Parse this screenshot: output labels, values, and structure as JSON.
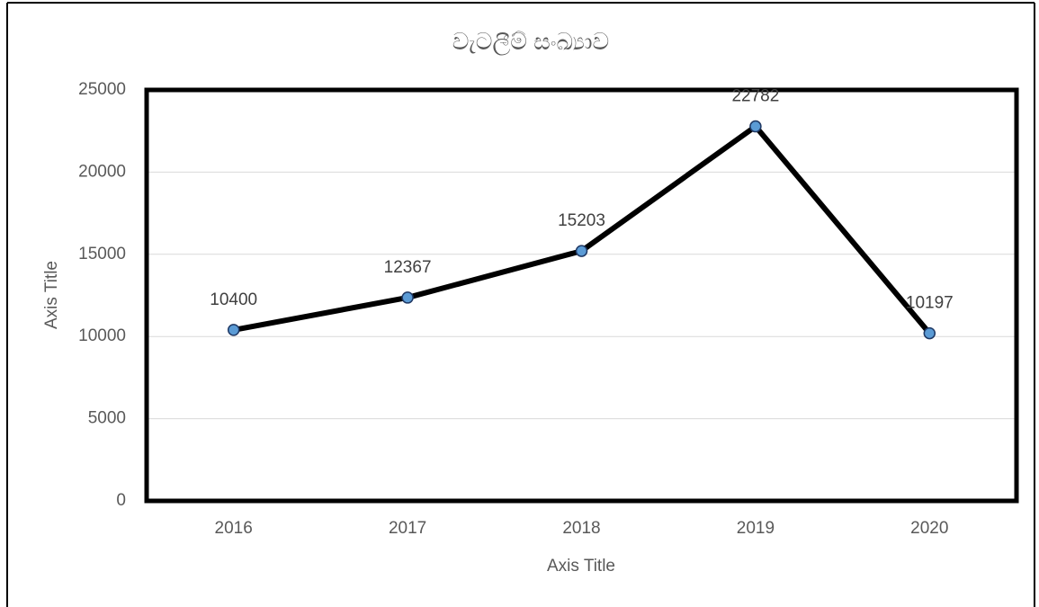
{
  "chart_data": {
    "type": "line",
    "title": "වැටලීම් සංඛ්‍යාව",
    "x_label": "Axis Title",
    "y_label": "Axis Title",
    "categories": [
      "2016",
      "2017",
      "2018",
      "2019",
      "2020"
    ],
    "series": [
      {
        "name": "වැටලීම් සංඛ්‍යාව",
        "color": "#000000",
        "marker_color": "#5b9bd5",
        "values": [
          10400,
          12367,
          15203,
          22782,
          10197
        ]
      }
    ],
    "ylim": [
      0,
      25000
    ],
    "yticks": [
      0,
      5000,
      10000,
      15000,
      20000,
      25000
    ],
    "grid": true,
    "legend": false
  }
}
